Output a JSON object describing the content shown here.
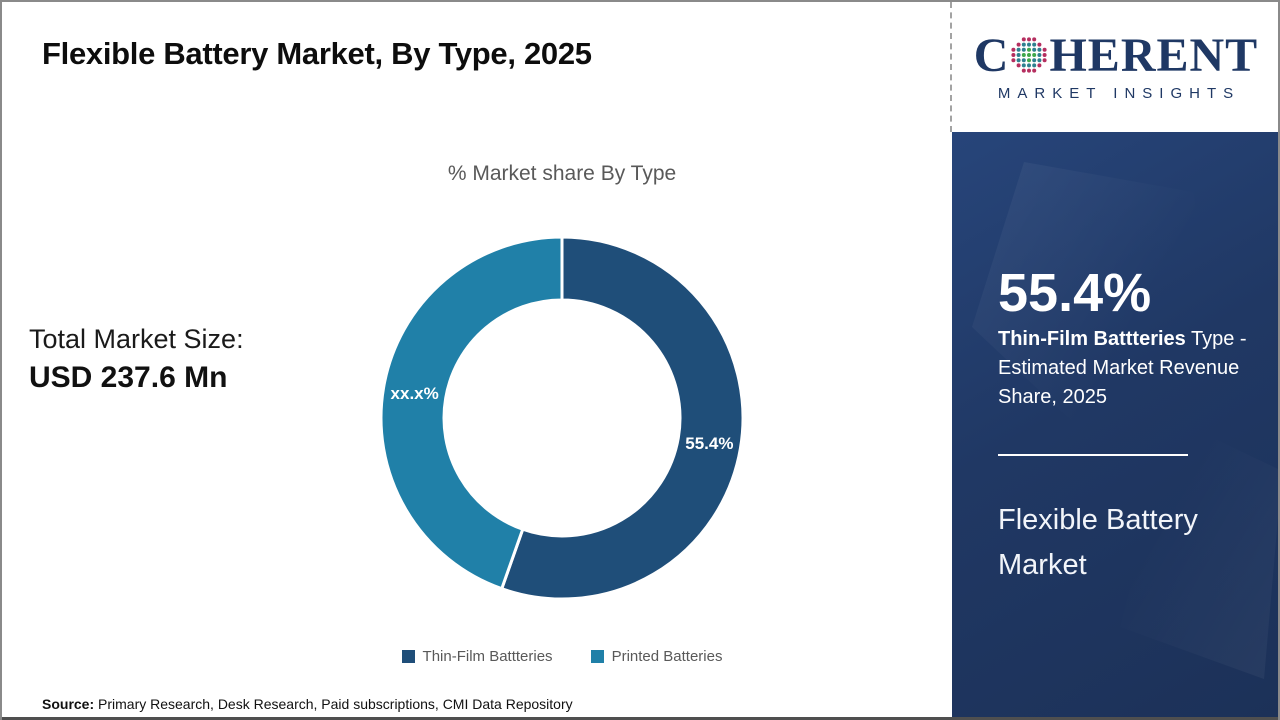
{
  "page": {
    "background": "#ffffff",
    "border_color": "#8a8a8a"
  },
  "header": {
    "title": "Flexible Battery Market, By Type, 2025"
  },
  "total_market": {
    "label": "Total Market Size:",
    "value": "USD 237.6 Mn"
  },
  "chart_data": {
    "type": "pie",
    "donut": true,
    "title": "% Market share By Type",
    "categories": [
      "Thin-Film Battteries",
      "Printed Batteries"
    ],
    "values": [
      55.4,
      44.6
    ],
    "display_labels": [
      "55.4%",
      "xx.x%"
    ],
    "colors": [
      "#1F4E79",
      "#2080A8"
    ],
    "start_angle_deg": 0,
    "direction": "clockwise",
    "outer_radius_px": 181,
    "inner_radius_ratio": 0.65,
    "slice_gap_color": "#ffffff",
    "label_color": "#ffffff",
    "legend_position": "bottom",
    "legend_text_color": "#595959"
  },
  "sidebar": {
    "logo": {
      "brand_c": "C",
      "brand_rest": "HERENT",
      "tagline": "MARKET INSIGHTS",
      "brand_color": "#1F3864",
      "globe_inner_color": "#3fa74a",
      "globe_mid_color": "#2e808f",
      "globe_outer_color": "#b52e5f"
    },
    "panel_color": "#203864",
    "stat_value": "55.4%",
    "stat_desc_bold": "Thin-Film Battteries",
    "stat_desc_rest": " Type - Estimated Market Revenue Share, 2025",
    "market_name": "Flexible Battery Market"
  },
  "footer": {
    "source_label": "Source:",
    "source_text": " Primary Research, Desk Research, Paid subscriptions, CMI Data Repository"
  }
}
